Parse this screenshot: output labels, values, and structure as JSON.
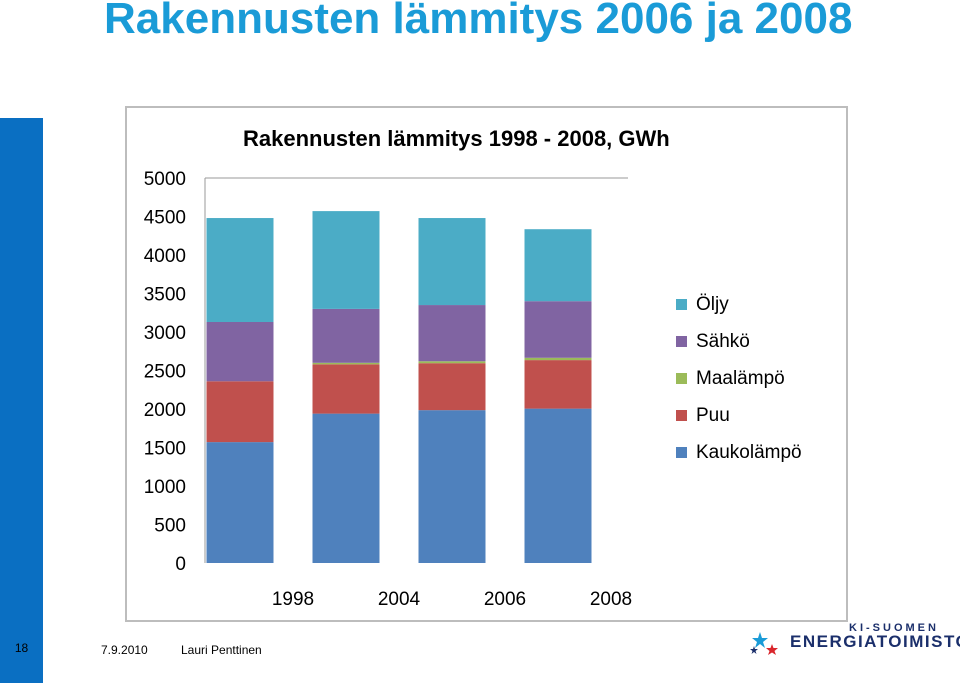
{
  "slide": {
    "title": "Rakennusten lämmitys 2006 ja 2008",
    "number": "18",
    "date": "7.9.2010",
    "author": "Lauri Penttinen",
    "logo_top": "KI-SUOMEN",
    "logo_bottom": "ENERGIATOIMISTO"
  },
  "chart_data": {
    "type": "bar",
    "stacked": true,
    "title": "Rakennusten lämmitys  1998 - 2008, GWh",
    "categories": [
      "1998",
      "2004",
      "2006",
      "2008"
    ],
    "ylim": [
      0,
      5000
    ],
    "yticks": [
      "5000",
      "4500",
      "4000",
      "3500",
      "3000",
      "2500",
      "2000",
      "1500",
      "1000",
      "500",
      "0"
    ],
    "ytick_values": [
      5000,
      4500,
      4000,
      3500,
      3000,
      2500,
      2000,
      1500,
      1000,
      500,
      0
    ],
    "grid": false,
    "legend_position": "right",
    "series": [
      {
        "name": "Kaukolämpö",
        "color": "#4f81bd",
        "values": [
          1570,
          1940,
          1985,
          2005
        ]
      },
      {
        "name": "Puu",
        "color": "#c0504d",
        "values": [
          790,
          640,
          610,
          630
        ]
      },
      {
        "name": "Maalämpö",
        "color": "#9bbb59",
        "values": [
          0,
          20,
          25,
          30
        ]
      },
      {
        "name": "Sähkö",
        "color": "#8064a2",
        "values": [
          770,
          700,
          730,
          735
        ]
      },
      {
        "name": "Öljy",
        "color": "#4bacc6",
        "values": [
          1350,
          1270,
          1130,
          935
        ]
      }
    ],
    "legend_order": [
      "Öljy",
      "Sähkö",
      "Maalämpö",
      "Puu",
      "Kaukolämpö"
    ]
  }
}
